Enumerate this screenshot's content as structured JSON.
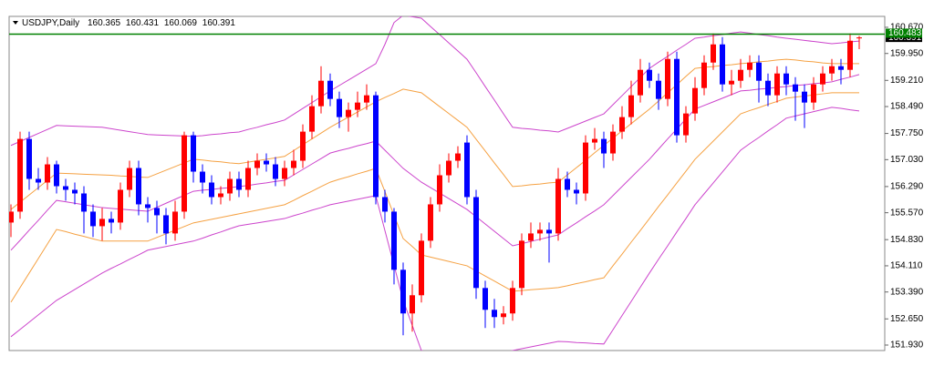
{
  "chart_data": {
    "type": "candlestick",
    "symbol": "USDJPY,Daily",
    "up_color": "#ff0000",
    "down_color": "#0000ff",
    "open": [
      155.3,
      155.6,
      157.6,
      156.5,
      156.4,
      156.9,
      156.3,
      156.2,
      156.1,
      155.6,
      155.2,
      155.4,
      155.3,
      156.2,
      156.8,
      155.8,
      155.7,
      155.5,
      155.0,
      155.6,
      157.7,
      156.7,
      156.4,
      156.0,
      156.1,
      156.5,
      156.2,
      156.8,
      157.0,
      156.9,
      156.5,
      156.8,
      157.0,
      157.8,
      158.5,
      159.2,
      158.7,
      158.2,
      158.4,
      158.6,
      158.8,
      156.0,
      155.6,
      154.0,
      152.8,
      153.3,
      154.8,
      155.8,
      156.6,
      157.0,
      157.5,
      156.0,
      153.5,
      152.9,
      152.7,
      152.8,
      153.5,
      154.8,
      155.0,
      155.1,
      155.0,
      156.5,
      156.2,
      156.1,
      157.5,
      157.6,
      157.2,
      157.8,
      158.2,
      158.8,
      159.5,
      159.2,
      158.7,
      159.8,
      157.7,
      158.3,
      159.0,
      159.7,
      160.2,
      159.1,
      159.2,
      159.5,
      159.7,
      159.2,
      158.8,
      159.4,
      159.1,
      158.9,
      158.6,
      159.1,
      159.4,
      159.6,
      159.5,
      160.365
    ],
    "high": [
      155.8,
      157.8,
      157.8,
      156.8,
      157.1,
      157.0,
      156.5,
      156.4,
      156.3,
      155.8,
      155.7,
      155.6,
      156.4,
      157.0,
      157.0,
      156.0,
      155.9,
      155.7,
      155.9,
      157.8,
      157.8,
      156.9,
      156.6,
      156.3,
      156.7,
      156.7,
      157.0,
      157.2,
      157.2,
      157.1,
      157.0,
      157.3,
      158.0,
      158.8,
      159.6,
      159.4,
      158.9,
      158.6,
      158.9,
      159.1,
      158.9,
      156.2,
      155.7,
      154.2,
      153.6,
      155.0,
      156.0,
      156.9,
      157.2,
      157.4,
      157.7,
      156.2,
      153.7,
      153.2,
      153.0,
      153.7,
      155.0,
      155.3,
      155.3,
      155.3,
      156.8,
      156.7,
      156.4,
      157.7,
      157.9,
      157.8,
      158.0,
      158.5,
      159.2,
      159.8,
      159.7,
      159.4,
      160.0,
      160.0,
      158.5,
      159.3,
      159.9,
      160.5,
      160.4,
      159.5,
      159.8,
      159.9,
      159.9,
      159.4,
      159.6,
      159.6,
      159.3,
      159.1,
      159.3,
      159.6,
      159.8,
      159.8,
      160.5,
      160.431
    ],
    "low": [
      154.9,
      155.4,
      156.2,
      156.2,
      156.2,
      156.1,
      155.9,
      155.8,
      155.0,
      154.9,
      154.8,
      155.0,
      155.1,
      156.0,
      155.5,
      155.3,
      155.0,
      154.7,
      154.8,
      155.4,
      156.4,
      156.1,
      155.8,
      155.8,
      155.9,
      156.0,
      156.0,
      156.6,
      156.7,
      156.3,
      156.3,
      156.6,
      156.8,
      157.6,
      158.3,
      158.5,
      157.9,
      157.8,
      158.2,
      158.4,
      155.8,
      155.3,
      153.6,
      152.2,
      152.3,
      153.1,
      154.6,
      155.6,
      156.4,
      156.8,
      155.8,
      153.2,
      152.4,
      152.4,
      152.5,
      152.6,
      153.3,
      154.6,
      154.8,
      154.2,
      154.8,
      156.0,
      155.8,
      155.9,
      157.3,
      156.8,
      157.0,
      157.6,
      158.0,
      158.6,
      159.0,
      158.4,
      158.5,
      157.5,
      157.5,
      158.1,
      158.8,
      159.5,
      158.9,
      158.8,
      159.0,
      159.3,
      158.6,
      158.5,
      158.6,
      158.8,
      158.1,
      157.9,
      158.4,
      158.9,
      159.2,
      159.1,
      159.3,
      160.069
    ],
    "close": [
      155.6,
      157.6,
      156.5,
      156.4,
      156.9,
      156.3,
      156.2,
      156.1,
      155.6,
      155.2,
      155.4,
      155.3,
      156.2,
      156.8,
      155.8,
      155.7,
      155.5,
      155.0,
      155.6,
      157.7,
      156.7,
      156.4,
      156.0,
      156.1,
      156.5,
      156.2,
      156.8,
      157.0,
      156.9,
      156.5,
      156.8,
      157.0,
      157.8,
      158.5,
      159.2,
      158.7,
      158.2,
      158.4,
      158.6,
      158.8,
      156.0,
      155.6,
      154.0,
      152.8,
      153.3,
      154.8,
      155.8,
      156.6,
      157.0,
      157.2,
      156.0,
      153.5,
      152.9,
      152.7,
      152.8,
      153.5,
      154.8,
      155.0,
      155.1,
      155.0,
      156.5,
      156.2,
      156.1,
      157.5,
      157.6,
      157.2,
      157.8,
      158.2,
      158.8,
      159.5,
      159.2,
      158.7,
      159.8,
      157.7,
      158.3,
      159.0,
      159.7,
      160.2,
      159.1,
      159.2,
      159.5,
      159.7,
      159.2,
      158.8,
      159.4,
      159.1,
      158.9,
      158.6,
      159.1,
      159.4,
      159.6,
      159.5,
      160.3,
      160.391
    ],
    "bands": [
      {
        "color": "#cc44cc",
        "values": [
          157.42,
          157.53,
          157.64,
          157.75,
          157.86,
          157.97,
          157.96,
          157.95,
          157.94,
          157.93,
          157.92,
          157.88,
          157.84,
          157.8,
          157.76,
          157.72,
          157.71,
          157.7,
          157.69,
          157.68,
          157.67,
          157.69,
          157.72,
          157.74,
          157.77,
          157.79,
          157.86,
          157.92,
          157.99,
          158.05,
          158.12,
          158.28,
          158.44,
          158.6,
          158.76,
          158.92,
          159.07,
          159.22,
          159.37,
          159.52,
          159.67,
          160.2,
          160.8,
          161.0,
          160.96,
          160.92,
          160.69,
          160.47,
          160.24,
          160.02,
          159.79,
          159.42,
          159.04,
          158.67,
          158.29,
          157.92,
          157.89,
          157.87,
          157.84,
          157.82,
          157.79,
          157.89,
          157.99,
          158.09,
          158.19,
          158.29,
          158.54,
          158.79,
          159.04,
          159.29,
          159.54,
          159.71,
          159.87,
          160.04,
          160.2,
          160.37,
          160.4,
          160.44,
          160.47,
          160.51,
          160.54,
          160.51,
          160.47,
          160.44,
          160.4,
          160.37,
          160.34,
          160.31,
          160.28,
          160.25,
          160.22,
          160.24,
          160.27,
          160.29
        ]
      },
      {
        "color": "#f5a142",
        "values": [
          155.66,
          155.86,
          156.06,
          156.26,
          156.46,
          156.66,
          156.65,
          156.64,
          156.63,
          156.62,
          156.61,
          156.6,
          156.58,
          156.57,
          156.55,
          156.54,
          156.64,
          156.74,
          156.84,
          156.94,
          157.04,
          157.02,
          156.99,
          156.97,
          156.94,
          156.92,
          156.96,
          157.0,
          157.04,
          157.08,
          157.12,
          157.28,
          157.44,
          157.6,
          157.76,
          157.92,
          158.06,
          158.2,
          158.34,
          158.48,
          158.62,
          158.74,
          158.85,
          158.97,
          158.92,
          158.87,
          158.68,
          158.49,
          158.3,
          158.11,
          157.92,
          157.59,
          157.27,
          156.94,
          156.62,
          156.29,
          156.31,
          156.34,
          156.36,
          156.39,
          156.41,
          156.61,
          156.81,
          157.01,
          157.22,
          157.42,
          157.62,
          157.82,
          158.02,
          158.22,
          158.42,
          158.64,
          158.87,
          159.09,
          159.32,
          159.54,
          159.57,
          159.59,
          159.62,
          159.64,
          159.67,
          159.69,
          159.72,
          159.74,
          159.77,
          159.79,
          159.77,
          159.74,
          159.72,
          159.69,
          159.67,
          159.67,
          159.67,
          159.67
        ]
      },
      {
        "color": "#cc44cc",
        "values": [
          154.54,
          154.81,
          155.09,
          155.36,
          155.64,
          155.91,
          155.87,
          155.83,
          155.79,
          155.75,
          155.71,
          155.69,
          155.67,
          155.65,
          155.63,
          155.61,
          155.72,
          155.83,
          155.94,
          156.05,
          156.16,
          156.19,
          156.21,
          156.24,
          156.26,
          156.29,
          156.32,
          156.36,
          156.39,
          156.43,
          156.46,
          156.61,
          156.76,
          156.91,
          157.06,
          157.21,
          157.28,
          157.34,
          157.41,
          157.47,
          157.54,
          157.29,
          157.04,
          156.79,
          156.6,
          156.41,
          156.26,
          156.11,
          155.96,
          155.81,
          155.66,
          155.46,
          155.26,
          155.06,
          154.86,
          154.66,
          154.72,
          154.78,
          154.84,
          154.9,
          154.96,
          155.13,
          155.29,
          155.46,
          155.62,
          155.79,
          156.04,
          156.29,
          156.54,
          156.79,
          157.04,
          157.32,
          157.6,
          157.87,
          158.15,
          158.42,
          158.52,
          158.62,
          158.72,
          158.82,
          158.92,
          158.94,
          158.97,
          158.99,
          159.02,
          159.04,
          159.07,
          159.09,
          159.12,
          159.14,
          159.17,
          159.24,
          159.3,
          159.37
        ]
      },
      {
        "color": "#f5a142",
        "values": [
          153.11,
          153.51,
          153.91,
          154.31,
          154.71,
          155.11,
          155.05,
          154.98,
          154.92,
          154.85,
          154.79,
          154.79,
          154.79,
          154.79,
          154.79,
          154.79,
          154.89,
          154.99,
          155.09,
          155.19,
          155.29,
          155.34,
          155.39,
          155.44,
          155.49,
          155.54,
          155.59,
          155.64,
          155.69,
          155.74,
          155.79,
          155.91,
          156.04,
          156.16,
          156.29,
          156.41,
          156.49,
          156.56,
          156.64,
          156.71,
          156.79,
          156.15,
          155.5,
          154.86,
          154.64,
          154.41,
          154.35,
          154.29,
          154.23,
          154.17,
          154.11,
          153.97,
          153.83,
          153.69,
          153.55,
          153.41,
          153.43,
          153.45,
          153.47,
          153.49,
          153.51,
          153.56,
          153.62,
          153.67,
          153.73,
          153.78,
          154.11,
          154.43,
          154.76,
          155.08,
          155.41,
          155.74,
          156.06,
          156.39,
          156.71,
          157.04,
          157.29,
          157.54,
          157.79,
          158.04,
          158.29,
          158.38,
          158.46,
          158.55,
          158.63,
          158.72,
          158.75,
          158.78,
          158.81,
          158.84,
          158.87,
          158.87,
          158.87,
          158.87
        ]
      },
      {
        "color": "#cc44cc",
        "values": [
          152.16,
          152.36,
          152.56,
          152.76,
          152.96,
          153.16,
          153.31,
          153.46,
          153.61,
          153.76,
          153.91,
          154.04,
          154.16,
          154.29,
          154.41,
          154.54,
          154.59,
          154.64,
          154.69,
          154.74,
          154.79,
          154.87,
          154.96,
          155.04,
          155.13,
          155.21,
          155.25,
          155.29,
          155.33,
          155.37,
          155.41,
          155.49,
          155.56,
          155.64,
          155.71,
          155.79,
          155.84,
          155.89,
          155.94,
          155.99,
          156.04,
          155.08,
          154.12,
          153.16,
          152.47,
          151.78,
          151.73,
          151.68,
          151.63,
          151.58,
          151.53,
          151.58,
          151.63,
          151.68,
          151.73,
          151.78,
          151.83,
          151.88,
          151.93,
          151.98,
          152.03,
          152.02,
          152.0,
          151.99,
          151.97,
          151.96,
          152.35,
          152.74,
          153.13,
          153.52,
          153.91,
          154.29,
          154.66,
          155.04,
          155.41,
          155.79,
          156.09,
          156.39,
          156.69,
          156.99,
          157.29,
          157.47,
          157.64,
          157.82,
          157.99,
          158.17,
          158.23,
          158.29,
          158.35,
          158.41,
          158.47,
          158.44,
          158.4,
          158.37
        ]
      }
    ],
    "hline": {
      "value": 160.483,
      "color": "#008000"
    },
    "ylim": [
      151.78,
      160.97
    ],
    "yticks": [
      {
        "value": 160.67,
        "label": "160.670"
      },
      {
        "value": 159.95,
        "label": "159.950"
      },
      {
        "value": 159.21,
        "label": "159.210"
      },
      {
        "value": 158.49,
        "label": "158.490"
      },
      {
        "value": 157.75,
        "label": "157.750"
      },
      {
        "value": 157.03,
        "label": "157.030"
      },
      {
        "value": 156.29,
        "label": "156.290"
      },
      {
        "value": 155.57,
        "label": "155.570"
      },
      {
        "value": 154.83,
        "label": "154.830"
      },
      {
        "value": 154.11,
        "label": "154.110"
      },
      {
        "value": 153.39,
        "label": "153.390"
      },
      {
        "value": 152.65,
        "label": "152.650"
      },
      {
        "value": 151.93,
        "label": "151.930"
      }
    ]
  }
}
